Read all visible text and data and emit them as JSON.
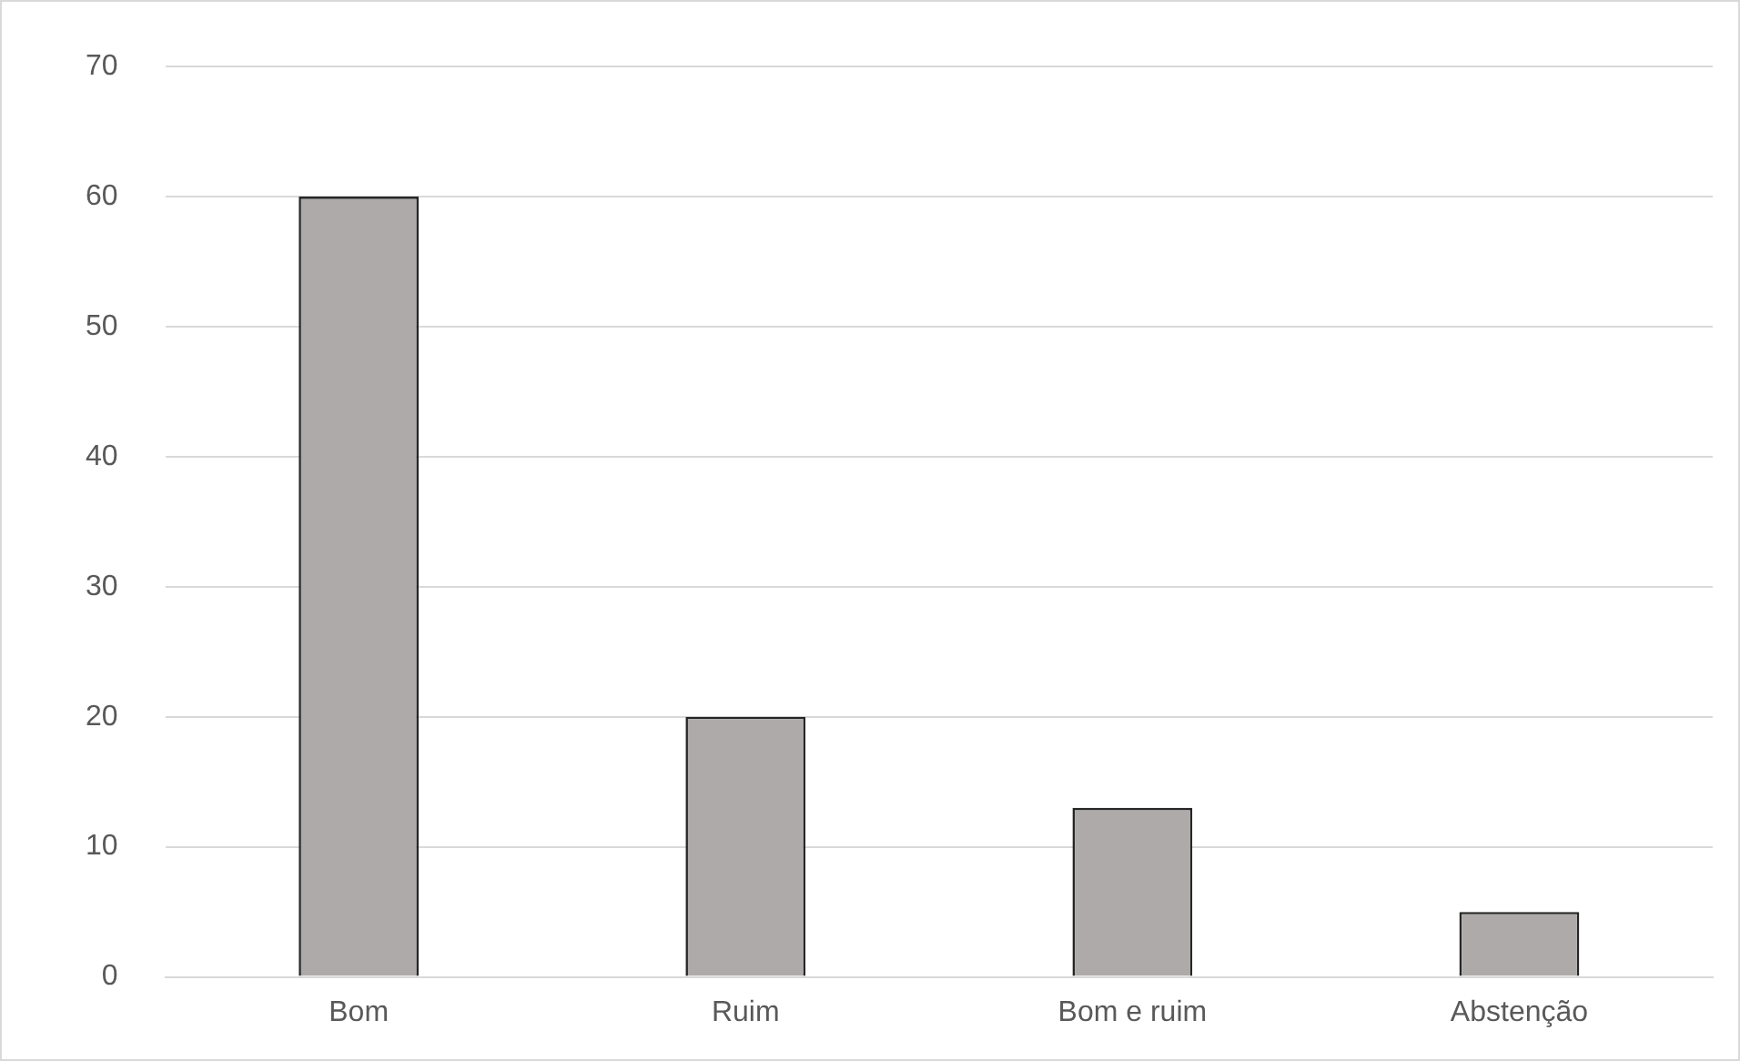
{
  "chart_data": {
    "type": "bar",
    "categories": [
      "Bom",
      "Ruim",
      "Bom e ruim",
      "Abstenção"
    ],
    "values": [
      60,
      20,
      13,
      5
    ],
    "color": "#aeaaaa",
    "ylim": [
      0,
      70
    ],
    "yticks": [
      0,
      10,
      20,
      30,
      40,
      50,
      60,
      70
    ],
    "grid": "y"
  }
}
